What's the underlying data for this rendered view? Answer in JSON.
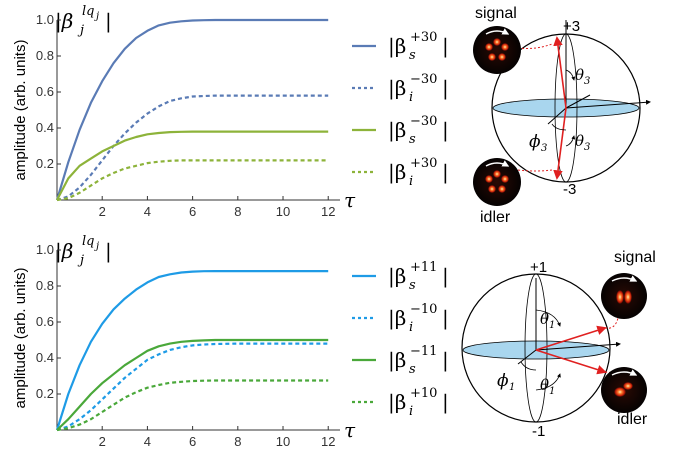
{
  "chart_data": [
    {
      "type": "line",
      "title_base": "|β",
      "title_sub": "j",
      "title_sup": "lq",
      "title_sup_sub": "j",
      "ylabel": "amplitude (arb. units)",
      "xlabel": "τ",
      "xlim": [
        0,
        12.3
      ],
      "ylim": [
        0,
        1.0
      ],
      "xticks": [
        "2",
        "4",
        "6",
        "8",
        "10",
        "12"
      ],
      "yticks": [
        "0.2",
        "0.4",
        "0.6",
        "0.8",
        "1.0"
      ],
      "series": [
        {
          "label_sub": "s",
          "label_sup": "+30",
          "style": "solid",
          "color": "#5a7bb5",
          "x": [
            0,
            0.5,
            1,
            1.5,
            2,
            2.5,
            3,
            3.5,
            4,
            4.5,
            5,
            5.5,
            6,
            6.5,
            7,
            8,
            9,
            10,
            11,
            12
          ],
          "y": [
            0,
            0.21,
            0.39,
            0.54,
            0.66,
            0.76,
            0.84,
            0.9,
            0.94,
            0.97,
            0.985,
            0.993,
            0.997,
            0.999,
            1.0,
            1.0,
            1.0,
            1.0,
            1.0,
            1.0
          ]
        },
        {
          "label_sub": "i",
          "label_sup": "−30",
          "style": "dashed",
          "color": "#5a7bb5",
          "x": [
            0,
            0.5,
            1,
            1.5,
            2,
            2.5,
            3,
            3.5,
            4,
            4.5,
            5,
            5.5,
            6,
            6.5,
            7,
            8,
            9,
            10,
            11,
            12
          ],
          "y": [
            0,
            0.02,
            0.07,
            0.14,
            0.22,
            0.3,
            0.37,
            0.43,
            0.48,
            0.52,
            0.55,
            0.565,
            0.575,
            0.578,
            0.58,
            0.58,
            0.58,
            0.58,
            0.58,
            0.58
          ]
        },
        {
          "label_sub": "s",
          "label_sup": "−30",
          "style": "solid",
          "color": "#8db33a",
          "x": [
            0,
            0.5,
            1,
            1.5,
            2,
            2.5,
            3,
            3.5,
            4,
            4.5,
            5,
            5.5,
            6,
            6.5,
            7,
            8,
            9,
            10,
            11,
            12
          ],
          "y": [
            0,
            0.12,
            0.19,
            0.23,
            0.27,
            0.3,
            0.33,
            0.35,
            0.365,
            0.372,
            0.377,
            0.379,
            0.38,
            0.38,
            0.38,
            0.38,
            0.38,
            0.38,
            0.38,
            0.38
          ]
        },
        {
          "label_sub": "i",
          "label_sup": "+30",
          "style": "dashed",
          "color": "#8db33a",
          "x": [
            0,
            0.5,
            1,
            1.5,
            2,
            2.5,
            3,
            3.5,
            4,
            4.5,
            5,
            5.5,
            6,
            6.5,
            7,
            8,
            9,
            10,
            11,
            12
          ],
          "y": [
            0,
            0.01,
            0.04,
            0.08,
            0.12,
            0.15,
            0.175,
            0.19,
            0.205,
            0.213,
            0.218,
            0.22,
            0.22,
            0.22,
            0.22,
            0.22,
            0.22,
            0.22,
            0.22,
            0.22
          ]
        }
      ]
    },
    {
      "type": "line",
      "title_base": "|β",
      "title_sub": "j",
      "title_sup": "lq",
      "title_sup_sub": "j",
      "ylabel": "amplitude (arb. units)",
      "xlabel": "τ",
      "xlim": [
        0,
        12.3
      ],
      "ylim": [
        0,
        1.0
      ],
      "xticks": [
        "2",
        "4",
        "6",
        "8",
        "10",
        "12"
      ],
      "yticks": [
        "0.2",
        "0.4",
        "0.6",
        "0.8",
        "1.0"
      ],
      "series": [
        {
          "label_sub": "s",
          "label_sup": "+11",
          "style": "solid",
          "color": "#1e9be6",
          "x": [
            0,
            0.5,
            1,
            1.5,
            2,
            2.5,
            3,
            3.5,
            4,
            4.5,
            5,
            5.5,
            6,
            6.5,
            7,
            8,
            9,
            10,
            11,
            12
          ],
          "y": [
            0,
            0.2,
            0.36,
            0.49,
            0.59,
            0.67,
            0.73,
            0.78,
            0.82,
            0.85,
            0.865,
            0.875,
            0.88,
            0.882,
            0.883,
            0.883,
            0.883,
            0.883,
            0.883,
            0.883
          ]
        },
        {
          "label_sub": "i",
          "label_sup": "−10",
          "style": "dashed",
          "color": "#1e9be6",
          "x": [
            0,
            0.5,
            1,
            1.5,
            2,
            2.5,
            3,
            3.5,
            4,
            4.5,
            5,
            5.5,
            6,
            6.5,
            7,
            8,
            9,
            10,
            11,
            12
          ],
          "y": [
            0,
            0.02,
            0.06,
            0.11,
            0.17,
            0.23,
            0.29,
            0.34,
            0.39,
            0.42,
            0.445,
            0.46,
            0.47,
            0.475,
            0.478,
            0.48,
            0.48,
            0.48,
            0.48,
            0.48
          ]
        },
        {
          "label_sub": "s",
          "label_sup": "−11",
          "style": "solid",
          "color": "#4aa83a",
          "x": [
            0,
            0.5,
            1,
            1.5,
            2,
            2.5,
            3,
            3.5,
            4,
            4.5,
            5,
            5.5,
            6,
            6.5,
            7,
            8,
            9,
            10,
            11,
            12
          ],
          "y": [
            0,
            0.06,
            0.13,
            0.2,
            0.26,
            0.31,
            0.36,
            0.4,
            0.44,
            0.465,
            0.48,
            0.49,
            0.495,
            0.498,
            0.5,
            0.5,
            0.5,
            0.5,
            0.5,
            0.5
          ]
        },
        {
          "label_sub": "i",
          "label_sup": "+10",
          "style": "dashed",
          "color": "#4aa83a",
          "x": [
            0,
            0.5,
            1,
            1.5,
            2,
            2.5,
            3,
            3.5,
            4,
            4.5,
            5,
            5.5,
            6,
            6.5,
            7,
            8,
            9,
            10,
            11,
            12
          ],
          "y": [
            0,
            0.01,
            0.03,
            0.06,
            0.1,
            0.14,
            0.18,
            0.21,
            0.235,
            0.25,
            0.262,
            0.268,
            0.272,
            0.274,
            0.275,
            0.275,
            0.275,
            0.275,
            0.275,
            0.275
          ]
        }
      ]
    }
  ],
  "sphere_top": {
    "north": "+3",
    "south": "-3",
    "theta_sub": "3",
    "phi_sub": "3",
    "label_signal": "signal",
    "label_idler": "idler"
  },
  "sphere_bottom": {
    "north": "+1",
    "south": "-1",
    "theta_sub": "1",
    "phi_sub": "1",
    "label_signal": "signal",
    "label_idler": "idler"
  },
  "colors": {
    "sphere_disk": "#a9d6ee",
    "arrow": "#e02020",
    "beam_glow": "#ff3a1a"
  }
}
